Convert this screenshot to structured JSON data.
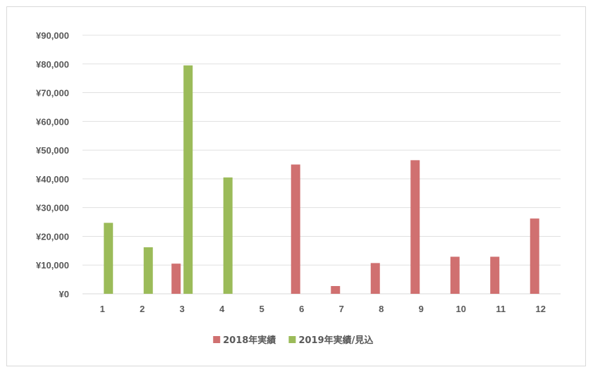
{
  "chart_data": {
    "type": "bar",
    "categories": [
      "1",
      "2",
      "3",
      "4",
      "5",
      "6",
      "7",
      "8",
      "9",
      "10",
      "11",
      "12"
    ],
    "series": [
      {
        "name": "2018年実績",
        "color": "#d07070",
        "values": [
          null,
          null,
          10500,
          null,
          null,
          45000,
          2700,
          10700,
          46500,
          12900,
          12900,
          26200
        ]
      },
      {
        "name": "2019年実績/見込",
        "color": "#9bbb59",
        "values": [
          24700,
          16200,
          79500,
          40500,
          null,
          null,
          null,
          null,
          null,
          null,
          null,
          null
        ]
      }
    ],
    "y_ticks": [
      "¥0",
      "¥10,000",
      "¥20,000",
      "¥30,000",
      "¥40,000",
      "¥50,000",
      "¥60,000",
      "¥70,000",
      "¥80,000",
      "¥90,000"
    ],
    "ylim": [
      0,
      90000
    ],
    "grid": true,
    "legend": "bottom",
    "title": "",
    "xlabel": "",
    "ylabel": ""
  }
}
